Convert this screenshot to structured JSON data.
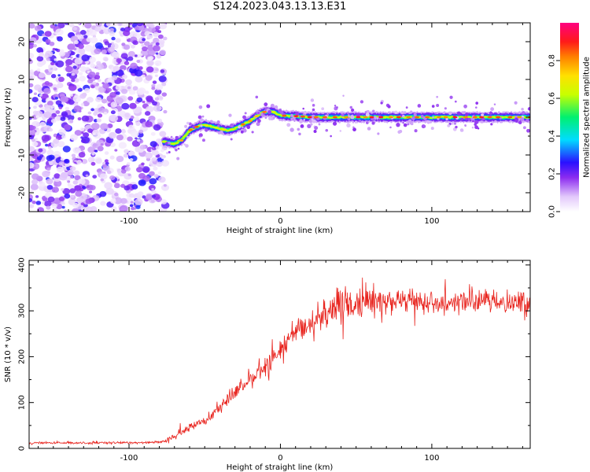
{
  "figure_title": "S124.2023.043.13.13.E31",
  "chart_data": [
    {
      "type": "heatmap",
      "title": "S124.2023.043.13.13.E31",
      "xlabel": "Height of straight line (km)",
      "ylabel": "Frequency (Hz)",
      "xlim": [
        -166,
        165
      ],
      "ylim": [
        -25,
        25
      ],
      "xticks": [
        -100,
        0,
        100
      ],
      "yticks": [
        -20,
        -10,
        0,
        10,
        20
      ],
      "grid": false,
      "colorbar": {
        "label": "Normalized spectral amplitude",
        "range": [
          0.0,
          1.0
        ],
        "ticks": [
          "0.0",
          "0.2",
          "0.4",
          "0.6",
          "0.8"
        ],
        "colormap": "rainbow (white-purple-blue-cyan-green-yellow-orange-red-magenta)"
      },
      "noise_region_x": [
        -166,
        -77
      ],
      "signal_track": {
        "x": [
          -77,
          -70,
          -65,
          -60,
          -55,
          -50,
          -45,
          -40,
          -35,
          -30,
          -25,
          -20,
          -15,
          -10,
          -5,
          0,
          5,
          10,
          20,
          30,
          40,
          50,
          60,
          70,
          80,
          90,
          100,
          110,
          120,
          130,
          140,
          150,
          165
        ],
        "frequency": [
          -6.5,
          -7,
          -6,
          -3.5,
          -2.5,
          -2,
          -2.5,
          -3,
          -3.5,
          -3,
          -2,
          -1,
          0.5,
          1.5,
          1.5,
          0.5,
          0.3,
          0.3,
          0,
          0,
          0,
          0,
          0,
          0,
          0,
          0,
          0,
          0,
          0,
          0,
          0,
          0,
          0
        ]
      }
    },
    {
      "type": "line",
      "xlabel": "Height of straight line (km)",
      "ylabel": "SNR (10 * v/v)",
      "xlim": [
        -166,
        165
      ],
      "ylim": [
        0,
        410
      ],
      "xticks": [
        -100,
        0,
        100
      ],
      "yticks": [
        0,
        100,
        200,
        300,
        400
      ],
      "grid": false,
      "series": [
        {
          "color": "#e8231d",
          "x": [
            -166,
            -150,
            -130,
            -110,
            -90,
            -75,
            -70,
            -65,
            -60,
            -55,
            -50,
            -45,
            -40,
            -35,
            -30,
            -25,
            -20,
            -15,
            -10,
            -5,
            0,
            5,
            10,
            15,
            20,
            25,
            30,
            35,
            40,
            45,
            50,
            55,
            60,
            70,
            80,
            90,
            100,
            110,
            120,
            130,
            140,
            150,
            160,
            165
          ],
          "values": [
            12,
            12,
            12,
            12,
            13,
            15,
            25,
            35,
            45,
            55,
            60,
            75,
            90,
            105,
            120,
            135,
            150,
            165,
            180,
            195,
            215,
            235,
            250,
            262,
            275,
            285,
            295,
            305,
            310,
            312,
            315,
            318,
            320,
            322,
            323,
            322,
            320,
            320,
            320,
            320,
            320,
            320,
            318,
            315
          ]
        }
      ]
    }
  ]
}
